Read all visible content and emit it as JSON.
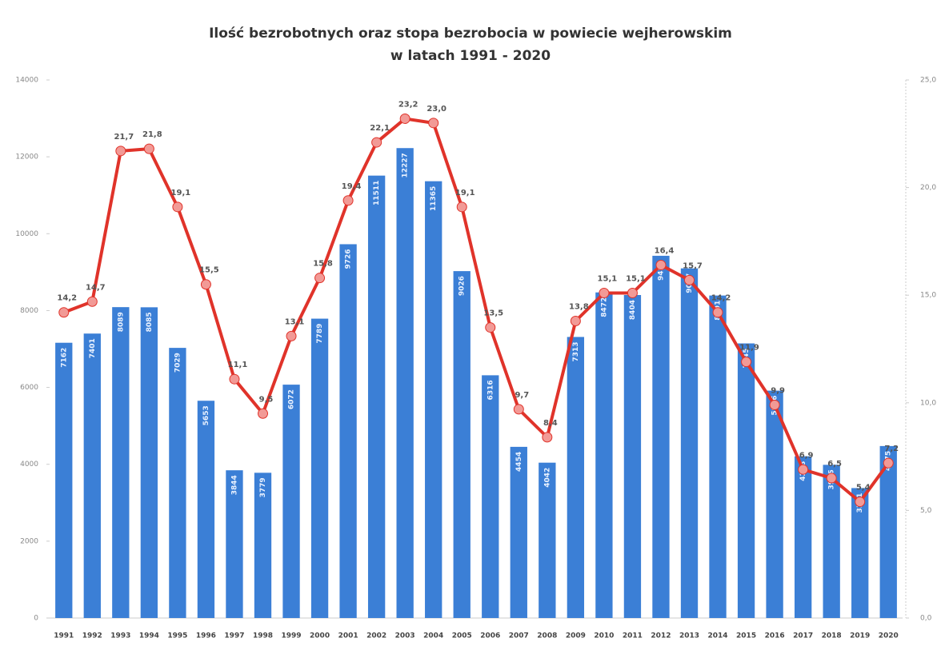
{
  "chart_data": {
    "type": "combo",
    "title": [
      "Ilość bezrobotnych oraz stopa bezrobocia w powiecie wejherowskim",
      "w latach 1991 - 2020"
    ],
    "categories": [
      "1991",
      "1992",
      "1993",
      "1994",
      "1995",
      "1996",
      "1997",
      "1998",
      "1999",
      "2000",
      "2001",
      "2002",
      "2003",
      "2004",
      "2005",
      "2006",
      "2007",
      "2008",
      "2009",
      "2010",
      "2011",
      "2012",
      "2013",
      "2014",
      "2015",
      "2016",
      "2017",
      "2018",
      "2019",
      "2020"
    ],
    "series": [
      {
        "type": "bar",
        "color": "#3b7fd6",
        "values": [
          7162,
          7401,
          8089,
          8085,
          7029,
          5653,
          3844,
          3779,
          6072,
          7789,
          9726,
          11511,
          12227,
          11365,
          9026,
          6316,
          4454,
          4042,
          7313,
          8472,
          8404,
          9425,
          9097,
          8391,
          7145,
          5916,
          4208,
          3986,
          3381,
          4475
        ]
      },
      {
        "type": "line",
        "axis": "y2",
        "color": "#e0332a",
        "marker_color": "#f29a96",
        "values": [
          14.2,
          14.7,
          21.7,
          21.8,
          19.1,
          15.5,
          11.1,
          9.5,
          13.1,
          15.8,
          19.4,
          22.1,
          23.2,
          23.0,
          19.1,
          13.5,
          9.7,
          8.4,
          13.8,
          15.1,
          15.1,
          16.4,
          15.7,
          14.2,
          11.9,
          9.9,
          6.9,
          6.5,
          5.4,
          7.2
        ],
        "value_labels": [
          "14,2",
          "14,7",
          "21,7",
          "21,8",
          "19,1",
          "15,5",
          "11,1",
          "9,5",
          "13,1",
          "15,8",
          "19,4",
          "22,1",
          "23,2",
          "23,0",
          "19,1",
          "13,5",
          "9,7",
          "8,4",
          "13,8",
          "15,1",
          "15,1",
          "16,4",
          "15,7",
          "14,2",
          "11,9",
          "9,9",
          "6,9",
          "6,5",
          "5,4",
          "7,2"
        ]
      }
    ],
    "ylim": [
      0,
      14000
    ],
    "yticks": [
      0,
      2000,
      4000,
      6000,
      8000,
      10000,
      12000,
      14000
    ],
    "y2lim": [
      0,
      25
    ],
    "y2ticks": [
      {
        "value": 0,
        "label": "0,0"
      },
      {
        "value": 5,
        "label": "5,0"
      },
      {
        "value": 10,
        "label": "10,0"
      },
      {
        "value": 15,
        "label": "15,0"
      },
      {
        "value": 20,
        "label": "20,0"
      },
      {
        "value": 25,
        "label": "25,0"
      }
    ],
    "grid": false
  }
}
